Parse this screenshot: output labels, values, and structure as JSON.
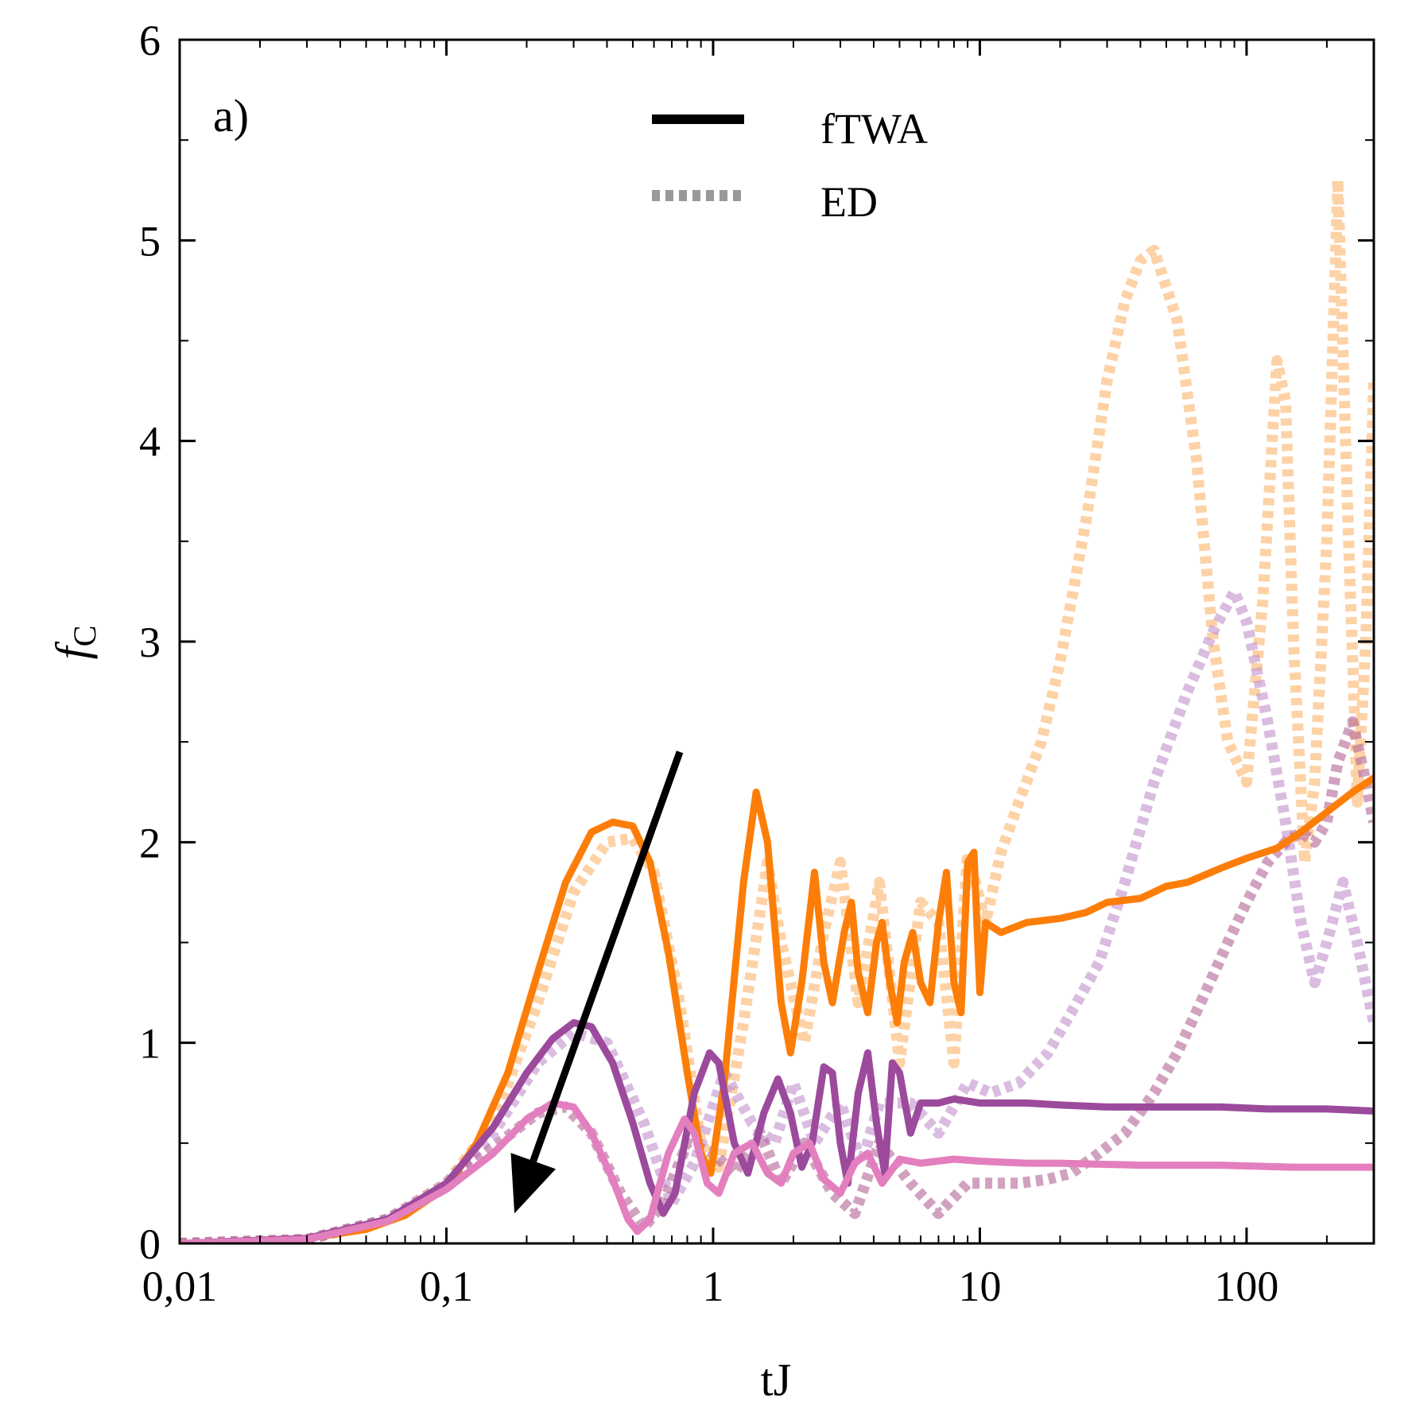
{
  "chart_data": {
    "type": "line",
    "panel_label": "a)",
    "xlabel": "tJ",
    "ylabel": "f",
    "ylabel_subscript": "C",
    "xscale": "log",
    "xlim": [
      0.01,
      300
    ],
    "ylim": [
      0,
      6
    ],
    "x_ticks": [
      {
        "value": 0.01,
        "label": "0,01"
      },
      {
        "value": 0.1,
        "label": "0,1"
      },
      {
        "value": 1,
        "label": "1"
      },
      {
        "value": 10,
        "label": "10"
      },
      {
        "value": 100,
        "label": "100"
      }
    ],
    "y_ticks": [
      {
        "value": 0,
        "label": "0"
      },
      {
        "value": 1,
        "label": "1"
      },
      {
        "value": 2,
        "label": "2"
      },
      {
        "value": 3,
        "label": "3"
      },
      {
        "value": 4,
        "label": "4"
      },
      {
        "value": 5,
        "label": "5"
      },
      {
        "value": 6,
        "label": "6"
      }
    ],
    "legend": {
      "position": "top-center",
      "entries": [
        {
          "label": "fTWA",
          "style": "solid",
          "color": "#000000"
        },
        {
          "label": "ED",
          "style": "dotted",
          "color": "#999999"
        }
      ]
    },
    "arrow": {
      "from": {
        "x": 0.75,
        "y": 2.45
      },
      "to": {
        "x": 0.18,
        "y": 0.15
      },
      "color": "#000000"
    },
    "series": [
      {
        "method": "ED",
        "color": "#fbb46a",
        "opacity": 0.6,
        "style": "dotted",
        "points": [
          [
            0.01,
            0
          ],
          [
            0.03,
            0.02
          ],
          [
            0.06,
            0.12
          ],
          [
            0.1,
            0.3
          ],
          [
            0.15,
            0.6
          ],
          [
            0.22,
            1.2
          ],
          [
            0.3,
            1.75
          ],
          [
            0.4,
            2.0
          ],
          [
            0.5,
            2.02
          ],
          [
            0.6,
            1.85
          ],
          [
            0.75,
            1.2
          ],
          [
            0.9,
            0.5
          ],
          [
            1.05,
            0.38
          ],
          [
            1.3,
            1.1
          ],
          [
            1.6,
            1.9
          ],
          [
            1.8,
            1.5
          ],
          [
            2.2,
            1.0
          ],
          [
            2.6,
            1.55
          ],
          [
            3.0,
            1.9
          ],
          [
            3.5,
            1.2
          ],
          [
            4.2,
            1.8
          ],
          [
            5.0,
            0.9
          ],
          [
            6.0,
            1.7
          ],
          [
            7.0,
            1.6
          ],
          [
            8.0,
            0.9
          ],
          [
            9.0,
            1.95
          ],
          [
            10.5,
            1.6
          ],
          [
            12,
            1.95
          ],
          [
            14,
            2.2
          ],
          [
            17,
            2.5
          ],
          [
            20,
            2.9
          ],
          [
            25,
            3.6
          ],
          [
            30,
            4.3
          ],
          [
            35,
            4.7
          ],
          [
            40,
            4.9
          ],
          [
            45,
            4.95
          ],
          [
            55,
            4.6
          ],
          [
            65,
            3.9
          ],
          [
            75,
            3.0
          ],
          [
            85,
            2.5
          ],
          [
            100,
            2.3
          ],
          [
            115,
            3.2
          ],
          [
            130,
            4.4
          ],
          [
            140,
            4.2
          ],
          [
            150,
            3.0
          ],
          [
            165,
            1.9
          ],
          [
            180,
            2.3
          ],
          [
            200,
            3.5
          ],
          [
            220,
            5.3
          ],
          [
            240,
            3.6
          ],
          [
            260,
            2.2
          ],
          [
            280,
            3.0
          ],
          [
            300,
            4.3
          ]
        ]
      },
      {
        "method": "ED",
        "color": "#c190cc",
        "opacity": 0.6,
        "style": "dotted",
        "points": [
          [
            0.01,
            0
          ],
          [
            0.03,
            0.02
          ],
          [
            0.06,
            0.12
          ],
          [
            0.1,
            0.3
          ],
          [
            0.15,
            0.55
          ],
          [
            0.22,
            0.9
          ],
          [
            0.3,
            1.05
          ],
          [
            0.4,
            1.0
          ],
          [
            0.55,
            0.6
          ],
          [
            0.7,
            0.2
          ],
          [
            0.85,
            0.4
          ],
          [
            1.1,
            0.85
          ],
          [
            1.4,
            0.6
          ],
          [
            1.7,
            0.5
          ],
          [
            2.0,
            0.8
          ],
          [
            2.4,
            0.5
          ],
          [
            3.0,
            0.7
          ],
          [
            3.6,
            0.4
          ],
          [
            4.2,
            0.7
          ],
          [
            5.5,
            0.7
          ],
          [
            7.0,
            0.55
          ],
          [
            9,
            0.8
          ],
          [
            11,
            0.75
          ],
          [
            14,
            0.8
          ],
          [
            18,
            0.95
          ],
          [
            22,
            1.15
          ],
          [
            28,
            1.4
          ],
          [
            35,
            1.8
          ],
          [
            45,
            2.3
          ],
          [
            60,
            2.75
          ],
          [
            75,
            3.05
          ],
          [
            90,
            3.25
          ],
          [
            100,
            3.1
          ],
          [
            120,
            2.6
          ],
          [
            140,
            2.1
          ],
          [
            160,
            1.6
          ],
          [
            180,
            1.3
          ],
          [
            200,
            1.5
          ],
          [
            230,
            1.8
          ],
          [
            260,
            1.5
          ],
          [
            300,
            1.1
          ]
        ]
      },
      {
        "method": "ED",
        "color": "#b36496",
        "opacity": 0.6,
        "style": "dotted",
        "points": [
          [
            0.01,
            0
          ],
          [
            0.03,
            0.02
          ],
          [
            0.06,
            0.12
          ],
          [
            0.1,
            0.28
          ],
          [
            0.15,
            0.48
          ],
          [
            0.22,
            0.65
          ],
          [
            0.28,
            0.68
          ],
          [
            0.35,
            0.55
          ],
          [
            0.45,
            0.25
          ],
          [
            0.55,
            0.08
          ],
          [
            0.65,
            0.2
          ],
          [
            0.8,
            0.5
          ],
          [
            1.0,
            0.45
          ],
          [
            1.2,
            0.35
          ],
          [
            1.5,
            0.55
          ],
          [
            1.8,
            0.3
          ],
          [
            2.2,
            0.5
          ],
          [
            2.8,
            0.25
          ],
          [
            3.4,
            0.15
          ],
          [
            4.2,
            0.5
          ],
          [
            5.5,
            0.3
          ],
          [
            7,
            0.15
          ],
          [
            9,
            0.3
          ],
          [
            11,
            0.3
          ],
          [
            14,
            0.3
          ],
          [
            18,
            0.32
          ],
          [
            22,
            0.35
          ],
          [
            28,
            0.45
          ],
          [
            35,
            0.55
          ],
          [
            45,
            0.75
          ],
          [
            55,
            0.95
          ],
          [
            70,
            1.25
          ],
          [
            85,
            1.5
          ],
          [
            100,
            1.7
          ],
          [
            120,
            1.9
          ],
          [
            140,
            2.0
          ],
          [
            160,
            2.05
          ],
          [
            180,
            2.0
          ],
          [
            200,
            2.1
          ],
          [
            220,
            2.4
          ],
          [
            250,
            2.6
          ],
          [
            280,
            2.3
          ],
          [
            300,
            2.1
          ]
        ]
      },
      {
        "method": "fTWA",
        "color": "#fc7e08",
        "opacity": 1,
        "style": "solid",
        "points": [
          [
            0.01,
            0
          ],
          [
            0.02,
            0.01
          ],
          [
            0.03,
            0.025
          ],
          [
            0.05,
            0.07
          ],
          [
            0.07,
            0.14
          ],
          [
            0.1,
            0.28
          ],
          [
            0.13,
            0.5
          ],
          [
            0.17,
            0.85
          ],
          [
            0.22,
            1.35
          ],
          [
            0.28,
            1.8
          ],
          [
            0.35,
            2.05
          ],
          [
            0.42,
            2.1
          ],
          [
            0.5,
            2.08
          ],
          [
            0.58,
            1.9
          ],
          [
            0.68,
            1.45
          ],
          [
            0.8,
            0.85
          ],
          [
            0.9,
            0.45
          ],
          [
            0.98,
            0.35
          ],
          [
            1.1,
            0.8
          ],
          [
            1.3,
            1.8
          ],
          [
            1.45,
            2.25
          ],
          [
            1.6,
            2.0
          ],
          [
            1.8,
            1.2
          ],
          [
            1.95,
            0.95
          ],
          [
            2.15,
            1.3
          ],
          [
            2.4,
            1.85
          ],
          [
            2.6,
            1.4
          ],
          [
            2.8,
            1.2
          ],
          [
            3.1,
            1.55
          ],
          [
            3.3,
            1.7
          ],
          [
            3.5,
            1.35
          ],
          [
            3.8,
            1.15
          ],
          [
            4.1,
            1.5
          ],
          [
            4.3,
            1.6
          ],
          [
            4.6,
            1.3
          ],
          [
            4.9,
            1.1
          ],
          [
            5.2,
            1.4
          ],
          [
            5.6,
            1.55
          ],
          [
            6.0,
            1.3
          ],
          [
            6.5,
            1.2
          ],
          [
            7.0,
            1.6
          ],
          [
            7.5,
            1.85
          ],
          [
            8.0,
            1.3
          ],
          [
            8.5,
            1.15
          ],
          [
            9.0,
            1.9
          ],
          [
            9.5,
            1.95
          ],
          [
            10,
            1.25
          ],
          [
            10.5,
            1.6
          ],
          [
            12,
            1.55
          ],
          [
            15,
            1.6
          ],
          [
            20,
            1.62
          ],
          [
            25,
            1.65
          ],
          [
            30,
            1.7
          ],
          [
            40,
            1.72
          ],
          [
            50,
            1.78
          ],
          [
            60,
            1.8
          ],
          [
            80,
            1.87
          ],
          [
            100,
            1.92
          ],
          [
            130,
            1.97
          ],
          [
            160,
            2.05
          ],
          [
            200,
            2.15
          ],
          [
            250,
            2.25
          ],
          [
            300,
            2.32
          ]
        ]
      },
      {
        "method": "fTWA",
        "color": "#9c4a9c",
        "opacity": 1,
        "style": "solid",
        "points": [
          [
            0.01,
            0
          ],
          [
            0.03,
            0.025
          ],
          [
            0.06,
            0.12
          ],
          [
            0.1,
            0.3
          ],
          [
            0.15,
            0.58
          ],
          [
            0.2,
            0.85
          ],
          [
            0.25,
            1.02
          ],
          [
            0.3,
            1.1
          ],
          [
            0.35,
            1.08
          ],
          [
            0.42,
            0.9
          ],
          [
            0.5,
            0.6
          ],
          [
            0.58,
            0.3
          ],
          [
            0.65,
            0.15
          ],
          [
            0.72,
            0.25
          ],
          [
            0.85,
            0.75
          ],
          [
            0.97,
            0.95
          ],
          [
            1.05,
            0.9
          ],
          [
            1.2,
            0.5
          ],
          [
            1.35,
            0.35
          ],
          [
            1.55,
            0.65
          ],
          [
            1.75,
            0.82
          ],
          [
            1.95,
            0.65
          ],
          [
            2.15,
            0.38
          ],
          [
            2.35,
            0.5
          ],
          [
            2.6,
            0.88
          ],
          [
            2.8,
            0.85
          ],
          [
            3.0,
            0.5
          ],
          [
            3.2,
            0.3
          ],
          [
            3.5,
            0.75
          ],
          [
            3.8,
            0.95
          ],
          [
            4.1,
            0.6
          ],
          [
            4.4,
            0.35
          ],
          [
            4.7,
            0.9
          ],
          [
            5.0,
            0.85
          ],
          [
            5.5,
            0.55
          ],
          [
            6.0,
            0.7
          ],
          [
            7,
            0.7
          ],
          [
            8,
            0.72
          ],
          [
            10,
            0.7
          ],
          [
            12,
            0.7
          ],
          [
            15,
            0.7
          ],
          [
            20,
            0.69
          ],
          [
            30,
            0.68
          ],
          [
            50,
            0.68
          ],
          [
            80,
            0.68
          ],
          [
            120,
            0.67
          ],
          [
            200,
            0.67
          ],
          [
            300,
            0.66
          ]
        ]
      },
      {
        "method": "fTWA",
        "color": "#e37fbe",
        "opacity": 1,
        "style": "solid",
        "points": [
          [
            0.01,
            0
          ],
          [
            0.03,
            0.02
          ],
          [
            0.06,
            0.11
          ],
          [
            0.1,
            0.27
          ],
          [
            0.15,
            0.45
          ],
          [
            0.2,
            0.62
          ],
          [
            0.25,
            0.7
          ],
          [
            0.3,
            0.68
          ],
          [
            0.35,
            0.55
          ],
          [
            0.42,
            0.32
          ],
          [
            0.48,
            0.12
          ],
          [
            0.52,
            0.06
          ],
          [
            0.58,
            0.12
          ],
          [
            0.68,
            0.45
          ],
          [
            0.78,
            0.62
          ],
          [
            0.85,
            0.55
          ],
          [
            0.95,
            0.3
          ],
          [
            1.05,
            0.25
          ],
          [
            1.2,
            0.45
          ],
          [
            1.4,
            0.5
          ],
          [
            1.6,
            0.35
          ],
          [
            1.8,
            0.3
          ],
          [
            2.0,
            0.45
          ],
          [
            2.3,
            0.5
          ],
          [
            2.6,
            0.32
          ],
          [
            3.0,
            0.25
          ],
          [
            3.4,
            0.4
          ],
          [
            3.8,
            0.45
          ],
          [
            4.3,
            0.3
          ],
          [
            5.0,
            0.42
          ],
          [
            6,
            0.4
          ],
          [
            8,
            0.42
          ],
          [
            10,
            0.41
          ],
          [
            15,
            0.4
          ],
          [
            20,
            0.4
          ],
          [
            40,
            0.39
          ],
          [
            80,
            0.39
          ],
          [
            150,
            0.38
          ],
          [
            300,
            0.38
          ]
        ]
      }
    ]
  }
}
